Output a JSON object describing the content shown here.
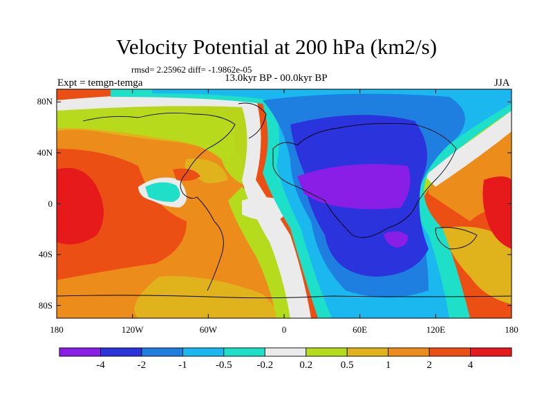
{
  "header": {
    "title": "Velocity Potential at 200 hPa (km2/s)",
    "stats": "rmsd= 2.25962 diff= -1.9862e-05",
    "period": "13.0kyr BP - 00.0kyr BP",
    "experiment": "Expt = temgn-temga",
    "season": "JJA"
  },
  "map": {
    "projection": "cylindrical-equidistant",
    "lon_range": [
      -180,
      180
    ],
    "lat_range": [
      -90,
      90
    ],
    "y_ticks": [
      {
        "value": 80,
        "label": "80N"
      },
      {
        "value": 40,
        "label": "40N"
      },
      {
        "value": 0,
        "label": "0"
      },
      {
        "value": -40,
        "label": "40S"
      },
      {
        "value": -80,
        "label": "80S"
      }
    ],
    "x_ticks": [
      {
        "value": -180,
        "label": "180"
      },
      {
        "value": -120,
        "label": "120W"
      },
      {
        "value": -60,
        "label": "60W"
      },
      {
        "value": 0,
        "label": "0"
      },
      {
        "value": 60,
        "label": "60E"
      },
      {
        "value": 120,
        "label": "120E"
      },
      {
        "value": 180,
        "label": "180"
      }
    ]
  },
  "colorbar": {
    "colors": [
      "#8a1ee6",
      "#2b33dd",
      "#1e7fe0",
      "#1ab8ee",
      "#1ee0c8",
      "#ebebeb",
      "#b5dc1c",
      "#e0b21c",
      "#ec8c1a",
      "#ec4f14",
      "#e61a1a"
    ],
    "labels": [
      "-4",
      "-2",
      "-1",
      "-0.5",
      "-0.2",
      "0.2",
      "0.5",
      "1",
      "2",
      "4"
    ]
  }
}
